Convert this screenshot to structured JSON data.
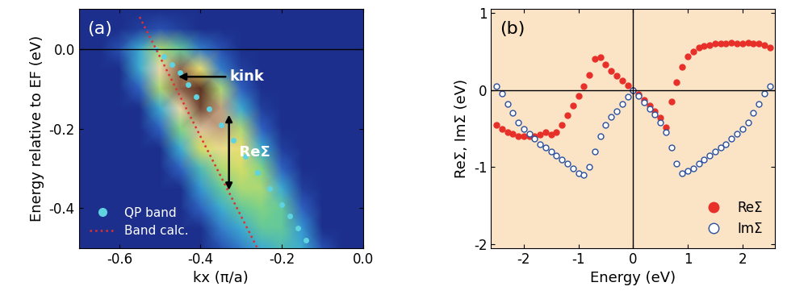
{
  "chart_data": [
    {
      "type": "heatmap",
      "panel_label": "(a)",
      "xlabel": "kx (π/a)",
      "ylabel": "Energy relative to EF (eV)",
      "xlim": [
        -0.7,
        0.0
      ],
      "ylim": [
        -0.5,
        0.1
      ],
      "xticks": [
        -0.6,
        -0.4,
        -0.2,
        0.0
      ],
      "yticks": [
        -0.4,
        -0.2,
        0.0
      ],
      "hlines": [
        0
      ],
      "cells": {
        "x": [
          -0.7,
          -0.65,
          -0.6,
          -0.55,
          -0.5,
          -0.45,
          -0.4,
          -0.35,
          -0.3,
          -0.25,
          -0.2,
          -0.15,
          -0.1,
          -0.05,
          0.0
        ],
        "y": [
          0.1,
          0.05,
          0.0,
          -0.05,
          -0.1,
          -0.15,
          -0.2,
          -0.25,
          -0.3,
          -0.35,
          -0.4,
          -0.45,
          -0.5
        ],
        "values": [
          [
            0,
            0,
            0,
            0,
            0,
            0,
            0,
            0,
            0,
            0,
            0,
            0,
            0,
            0,
            0
          ],
          [
            0,
            0,
            0,
            0.05,
            0.1,
            0.05,
            0,
            0,
            0,
            0,
            0,
            0,
            0,
            0,
            0
          ],
          [
            0,
            0,
            0.1,
            0.3,
            0.5,
            0.4,
            0.2,
            0.1,
            0,
            0,
            0,
            0,
            0,
            0,
            0
          ],
          [
            0,
            0,
            0,
            0.3,
            0.7,
            0.9,
            0.6,
            0.2,
            0.05,
            0,
            0,
            0,
            0,
            0,
            0
          ],
          [
            0,
            0,
            0,
            0.15,
            0.5,
            0.9,
            1.0,
            0.5,
            0.15,
            0,
            0,
            0,
            0,
            0,
            0
          ],
          [
            0,
            0,
            0,
            0,
            0.3,
            0.7,
            0.95,
            0.8,
            0.3,
            0.05,
            0,
            0,
            0,
            0,
            0
          ],
          [
            0,
            0,
            0,
            0,
            0.15,
            0.45,
            0.75,
            0.8,
            0.5,
            0.15,
            0,
            0,
            0,
            0,
            0
          ],
          [
            0,
            0,
            0,
            0,
            0,
            0.3,
            0.55,
            0.65,
            0.6,
            0.3,
            0.05,
            0,
            0,
            0,
            0
          ],
          [
            0,
            0,
            0,
            0,
            0,
            0.15,
            0.35,
            0.5,
            0.55,
            0.45,
            0.15,
            0,
            0,
            0,
            0
          ],
          [
            0,
            0,
            0,
            0,
            0,
            0,
            0.25,
            0.4,
            0.5,
            0.5,
            0.3,
            0.05,
            0,
            0,
            0
          ],
          [
            0,
            0,
            0,
            0,
            0,
            0,
            0.15,
            0.3,
            0.4,
            0.45,
            0.4,
            0.15,
            0,
            0,
            0
          ],
          [
            0,
            0,
            0,
            0,
            0,
            0,
            0,
            0.2,
            0.3,
            0.4,
            0.4,
            0.25,
            0,
            0,
            0
          ],
          [
            0,
            0,
            0,
            0,
            0,
            0,
            0,
            0.1,
            0.2,
            0.3,
            0.35,
            0.3,
            0.1,
            0,
            0
          ]
        ]
      },
      "series": [
        {
          "name": "QP band",
          "color": "#5fd3e0",
          "marker": "circle",
          "line_style": "none",
          "x": [
            -0.51,
            -0.49,
            -0.47,
            -0.45,
            -0.43,
            -0.41,
            -0.38,
            -0.35,
            -0.32,
            -0.29,
            -0.26,
            -0.23,
            -0.2,
            -0.18,
            -0.16,
            -0.14
          ],
          "values": [
            0.0,
            -0.02,
            -0.04,
            -0.06,
            -0.09,
            -0.12,
            -0.15,
            -0.19,
            -0.23,
            -0.27,
            -0.31,
            -0.35,
            -0.39,
            -0.42,
            -0.45,
            -0.48
          ]
        },
        {
          "name": "Band calc.",
          "color": "#e03030",
          "marker": "none",
          "line_style": "dotted",
          "x": [
            -0.55,
            -0.26
          ],
          "values": [
            0.08,
            -0.5
          ]
        }
      ],
      "legend": "lower left",
      "annotations": [
        {
          "text": "kink",
          "x": -0.46,
          "y": -0.07
        },
        {
          "text": "ReΣ",
          "x": -0.33,
          "y_from": -0.16,
          "y_to": -0.36
        }
      ]
    },
    {
      "type": "scatter",
      "panel_label": "(b)",
      "xlabel": "Energy (eV)",
      "ylabel": "ReΣ, ImΣ (eV)",
      "xlim": [
        -2.6,
        2.6
      ],
      "ylim": [
        -2.05,
        1.05
      ],
      "xticks": [
        -2,
        -1,
        0,
        1,
        2
      ],
      "yticks": [
        -2,
        -1,
        0,
        1
      ],
      "hlines": [
        0
      ],
      "vlines": [
        0
      ],
      "legend": "lower right",
      "series": [
        {
          "name": "ReΣ",
          "color": "#e8302a",
          "marker": "circle",
          "x": [
            -2.5,
            -2.4,
            -2.3,
            -2.2,
            -2.1,
            -2.0,
            -1.9,
            -1.8,
            -1.7,
            -1.6,
            -1.5,
            -1.4,
            -1.3,
            -1.2,
            -1.1,
            -1.0,
            -0.9,
            -0.8,
            -0.7,
            -0.6,
            -0.5,
            -0.4,
            -0.3,
            -0.2,
            -0.1,
            0.0,
            0.1,
            0.2,
            0.3,
            0.4,
            0.5,
            0.6,
            0.7,
            0.8,
            0.9,
            1.0,
            1.1,
            1.2,
            1.3,
            1.4,
            1.5,
            1.6,
            1.7,
            1.8,
            1.9,
            2.0,
            2.1,
            2.2,
            2.3,
            2.4,
            2.5
          ],
          "values": [
            -0.45,
            -0.5,
            -0.55,
            -0.57,
            -0.6,
            -0.6,
            -0.6,
            -0.6,
            -0.58,
            -0.55,
            -0.58,
            -0.55,
            -0.45,
            -0.33,
            -0.2,
            -0.08,
            0.05,
            0.2,
            0.4,
            0.42,
            0.33,
            0.25,
            0.18,
            0.12,
            0.06,
            0.0,
            -0.06,
            -0.13,
            -0.2,
            -0.28,
            -0.36,
            -0.48,
            -0.15,
            0.1,
            0.3,
            0.43,
            0.5,
            0.55,
            0.57,
            0.58,
            0.6,
            0.6,
            0.6,
            0.61,
            0.6,
            0.6,
            0.61,
            0.6,
            0.6,
            0.58,
            0.55
          ]
        },
        {
          "name": "ImΣ",
          "color": "#2a50a0",
          "marker": "open_circle",
          "x": [
            -2.5,
            -2.4,
            -2.3,
            -2.2,
            -2.1,
            -2.0,
            -1.9,
            -1.8,
            -1.7,
            -1.6,
            -1.5,
            -1.4,
            -1.3,
            -1.2,
            -1.1,
            -1.0,
            -0.9,
            -0.8,
            -0.7,
            -0.6,
            -0.5,
            -0.4,
            -0.3,
            -0.2,
            -0.1,
            0.0,
            0.1,
            0.2,
            0.3,
            0.4,
            0.5,
            0.6,
            0.7,
            0.8,
            0.9,
            1.0,
            1.1,
            1.2,
            1.3,
            1.4,
            1.5,
            1.6,
            1.7,
            1.8,
            1.9,
            2.0,
            2.1,
            2.2,
            2.3,
            2.4,
            2.5
          ],
          "values": [
            0.05,
            -0.05,
            -0.18,
            -0.3,
            -0.42,
            -0.5,
            -0.57,
            -0.63,
            -0.7,
            -0.75,
            -0.8,
            -0.85,
            -0.9,
            -0.95,
            -1.02,
            -1.08,
            -1.1,
            -1.0,
            -0.8,
            -0.6,
            -0.45,
            -0.35,
            -0.27,
            -0.18,
            -0.09,
            0.0,
            -0.08,
            -0.16,
            -0.24,
            -0.32,
            -0.42,
            -0.55,
            -0.75,
            -0.95,
            -1.08,
            -1.05,
            -1.02,
            -0.95,
            -0.9,
            -0.85,
            -0.8,
            -0.75,
            -0.7,
            -0.63,
            -0.57,
            -0.5,
            -0.42,
            -0.3,
            -0.18,
            -0.05,
            0.05
          ]
        }
      ]
    }
  ]
}
